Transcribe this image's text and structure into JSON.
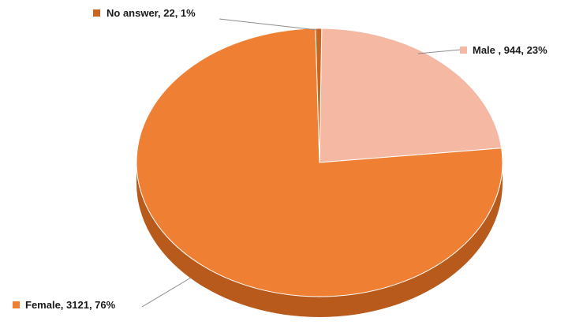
{
  "chart_data": {
    "type": "pie",
    "style": "3d",
    "title": "",
    "slices": [
      {
        "name": "Male",
        "value": 944,
        "percent": 23,
        "label": "Male , 944, 23%",
        "color": "#f5b8a2",
        "side_color": "#d99a82"
      },
      {
        "name": "Female",
        "value": 3121,
        "percent": 76,
        "label": "Female, 3121, 76%",
        "color": "#ef7f32",
        "side_color": "#b85a1c"
      },
      {
        "name": "No answer",
        "value": 22,
        "percent": 1,
        "label": "No answer, 22, 1%",
        "color": "#c8661f",
        "side_color": "#8f4612"
      }
    ],
    "legend": "none"
  }
}
